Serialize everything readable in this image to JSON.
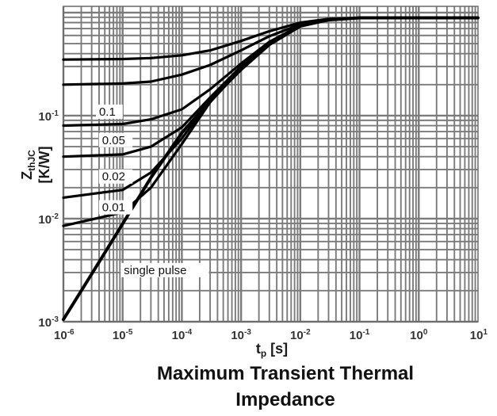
{
  "chart_data": {
    "type": "line",
    "title": "Maximum Transient Thermal Impedance",
    "caption_lines": [
      "Maximum Transient Thermal",
      "Impedance"
    ],
    "xlabel": {
      "main": "t",
      "sub": "p",
      "unit": " [s]"
    },
    "ylabel": {
      "main": "Z",
      "sub": "thJC",
      "unit": "[K/W]"
    },
    "x_scale": "log",
    "y_scale": "log",
    "xlim": [
      1e-06,
      10
    ],
    "ylim": [
      0.001,
      1.15
    ],
    "grid": true,
    "x_ticks": [
      {
        "value": 1e-06,
        "base": "10",
        "exp": "-6"
      },
      {
        "value": 1e-05,
        "base": "10",
        "exp": "-5"
      },
      {
        "value": 0.0001,
        "base": "10",
        "exp": "-4"
      },
      {
        "value": 0.001,
        "base": "10",
        "exp": "-3"
      },
      {
        "value": 0.01,
        "base": "10",
        "exp": "-2"
      },
      {
        "value": 0.1,
        "base": "10",
        "exp": "-1"
      },
      {
        "value": 1,
        "base": "10",
        "exp": "0"
      },
      {
        "value": 10,
        "base": "10",
        "exp": "1"
      }
    ],
    "y_ticks": [
      {
        "value": 0.1,
        "base": "10",
        "exp": "-1"
      },
      {
        "value": 0.01,
        "base": "10",
        "exp": "-2"
      },
      {
        "value": 0.001,
        "base": "10",
        "exp": "-3"
      }
    ],
    "series": [
      {
        "name": "",
        "points": [
          [
            1e-06,
            0.35
          ],
          [
            1e-05,
            0.354
          ],
          [
            3e-05,
            0.362
          ],
          [
            0.0001,
            0.385
          ],
          [
            0.0003,
            0.43
          ],
          [
            0.001,
            0.53
          ],
          [
            0.003,
            0.66
          ],
          [
            0.01,
            0.8
          ],
          [
            0.03,
            0.87
          ],
          [
            0.1,
            0.89
          ],
          [
            1,
            0.89
          ],
          [
            10,
            0.89
          ]
        ]
      },
      {
        "name": "",
        "points": [
          [
            1e-06,
            0.2
          ],
          [
            1e-05,
            0.205
          ],
          [
            3e-05,
            0.214
          ],
          [
            0.0001,
            0.25
          ],
          [
            0.0003,
            0.31
          ],
          [
            0.001,
            0.43
          ],
          [
            0.003,
            0.59
          ],
          [
            0.01,
            0.77
          ],
          [
            0.03,
            0.86
          ],
          [
            0.1,
            0.89
          ],
          [
            1,
            0.89
          ],
          [
            10,
            0.89
          ]
        ]
      },
      {
        "name": "0.1",
        "points": [
          [
            1e-06,
            0.08
          ],
          [
            1e-05,
            0.083
          ],
          [
            3e-05,
            0.092
          ],
          [
            0.0001,
            0.115
          ],
          [
            0.0003,
            0.18
          ],
          [
            0.001,
            0.32
          ],
          [
            0.003,
            0.52
          ],
          [
            0.01,
            0.75
          ],
          [
            0.03,
            0.855
          ],
          [
            0.1,
            0.89
          ],
          [
            1,
            0.89
          ],
          [
            10,
            0.89
          ]
        ]
      },
      {
        "name": "0.05",
        "points": [
          [
            1e-06,
            0.04
          ],
          [
            1e-05,
            0.042
          ],
          [
            3e-05,
            0.05
          ],
          [
            0.0001,
            0.077
          ],
          [
            0.0003,
            0.15
          ],
          [
            0.001,
            0.3
          ],
          [
            0.003,
            0.51
          ],
          [
            0.01,
            0.74
          ],
          [
            0.03,
            0.85
          ],
          [
            0.1,
            0.89
          ],
          [
            1,
            0.89
          ],
          [
            10,
            0.89
          ]
        ]
      },
      {
        "name": "0.02",
        "points": [
          [
            1e-06,
            0.016
          ],
          [
            1e-05,
            0.019
          ],
          [
            3e-05,
            0.028
          ],
          [
            0.0001,
            0.06
          ],
          [
            0.0003,
            0.14
          ],
          [
            0.001,
            0.29
          ],
          [
            0.003,
            0.5
          ],
          [
            0.01,
            0.74
          ],
          [
            0.03,
            0.85
          ],
          [
            0.1,
            0.89
          ],
          [
            1,
            0.89
          ],
          [
            10,
            0.89
          ]
        ]
      },
      {
        "name": "0.01",
        "points": [
          [
            1e-06,
            0.0085
          ],
          [
            1e-05,
            0.0115
          ],
          [
            3e-05,
            0.02
          ],
          [
            0.0001,
            0.053
          ],
          [
            0.0003,
            0.135
          ],
          [
            0.001,
            0.285
          ],
          [
            0.003,
            0.5
          ],
          [
            0.01,
            0.74
          ],
          [
            0.03,
            0.85
          ],
          [
            0.1,
            0.89
          ],
          [
            1,
            0.89
          ],
          [
            10,
            0.89
          ]
        ]
      },
      {
        "name": "single pulse",
        "points": [
          [
            1e-06,
            0.00105
          ],
          [
            3e-06,
            0.0029
          ],
          [
            1e-05,
            0.0089
          ],
          [
            3e-05,
            0.025
          ],
          [
            0.0001,
            0.068
          ],
          [
            0.0003,
            0.14
          ],
          [
            0.001,
            0.28
          ],
          [
            0.003,
            0.49
          ],
          [
            0.01,
            0.74
          ],
          [
            0.03,
            0.85
          ],
          [
            0.1,
            0.89
          ],
          [
            1,
            0.89
          ],
          [
            10,
            0.89
          ]
        ]
      }
    ],
    "curve_labels": [
      {
        "text": "0.1",
        "x": 4e-06,
        "y": 0.1
      },
      {
        "text": "0.05",
        "x": 4.5e-06,
        "y": 0.053
      },
      {
        "text": "0.02",
        "x": 4.5e-06,
        "y": 0.0235
      },
      {
        "text": "0.01",
        "x": 4.5e-06,
        "y": 0.0118
      },
      {
        "text": "single pulse",
        "x": 1.05e-05,
        "y": 0.0029
      }
    ]
  }
}
